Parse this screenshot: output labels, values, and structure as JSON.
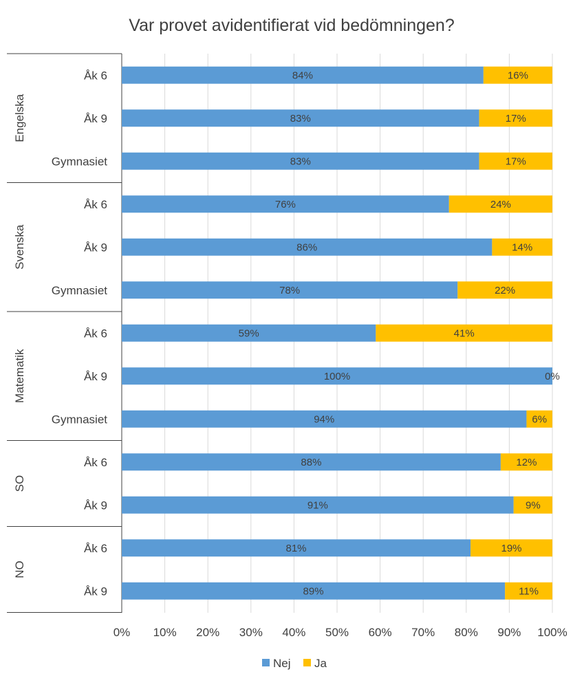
{
  "chart_data": {
    "type": "bar",
    "orientation": "horizontal",
    "stacked": true,
    "title": "Var provet avidentifierat vid bedömningen?",
    "groups": [
      {
        "name": "Engelska",
        "categories": [
          "Åk 6",
          "Åk 9",
          "Gymnasiet"
        ]
      },
      {
        "name": "Svenska",
        "categories": [
          "Åk 6",
          "Åk 9",
          "Gymnasiet"
        ]
      },
      {
        "name": "Matematik",
        "categories": [
          "Åk 6",
          "Åk 9",
          "Gymnasiet"
        ]
      },
      {
        "name": "SO",
        "categories": [
          "Åk 6",
          "Åk 9"
        ]
      },
      {
        "name": "NO",
        "categories": [
          "Åk 6",
          "Åk 9"
        ]
      }
    ],
    "series": [
      {
        "name": "Nej",
        "color": "#5b9bd5",
        "values": [
          84,
          83,
          83,
          76,
          86,
          78,
          59,
          100,
          94,
          88,
          91,
          81,
          89
        ],
        "labels": [
          "84%",
          "83%",
          "83%",
          "76%",
          "86%",
          "78%",
          "59%",
          "100%",
          "94%",
          "88%",
          "91%",
          "81%",
          "89%"
        ]
      },
      {
        "name": "Ja",
        "color": "#ffc000",
        "values": [
          16,
          17,
          17,
          24,
          14,
          22,
          41,
          0,
          6,
          12,
          9,
          19,
          11
        ],
        "labels": [
          "16%",
          "17%",
          "17%",
          "24%",
          "14%",
          "22%",
          "41%",
          "0%",
          "6%",
          "12%",
          "9%",
          "19%",
          "11%"
        ]
      }
    ],
    "x_ticks": [
      "0%",
      "10%",
      "20%",
      "30%",
      "40%",
      "50%",
      "60%",
      "70%",
      "80%",
      "90%",
      "100%"
    ],
    "xlim": [
      0,
      100
    ],
    "grid": true,
    "legend_position": "bottom"
  }
}
